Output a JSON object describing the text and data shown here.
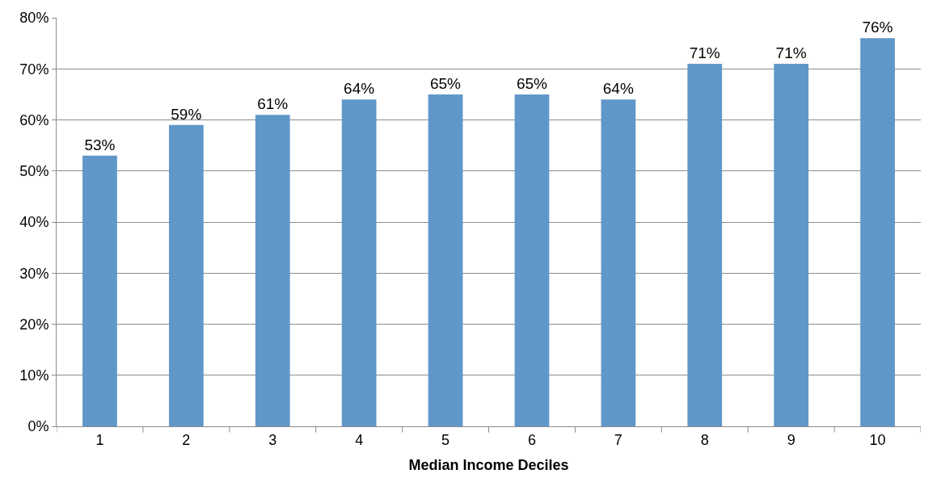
{
  "chart_data": {
    "type": "bar",
    "xlabel": "Median Income Deciles",
    "categories": [
      "1",
      "2",
      "3",
      "4",
      "5",
      "6",
      "7",
      "8",
      "9",
      "10"
    ],
    "values": [
      53,
      59,
      61,
      64,
      65,
      65,
      64,
      71,
      71,
      76
    ],
    "value_labels": [
      "53%",
      "59%",
      "61%",
      "64%",
      "65%",
      "65%",
      "64%",
      "71%",
      "71%",
      "76%"
    ],
    "color": "#6097c9",
    "ylim": [
      0,
      80
    ],
    "yticks": [
      {
        "value": 0,
        "label": "0%"
      },
      {
        "value": 10,
        "label": "10%"
      },
      {
        "value": 20,
        "label": "20%"
      },
      {
        "value": 30,
        "label": "30%"
      },
      {
        "value": 40,
        "label": "40%"
      },
      {
        "value": 50,
        "label": "50%"
      },
      {
        "value": 60,
        "label": "60%"
      },
      {
        "value": 70,
        "label": "70%"
      },
      {
        "value": 80,
        "label": "80%"
      }
    ],
    "grid": "y"
  }
}
